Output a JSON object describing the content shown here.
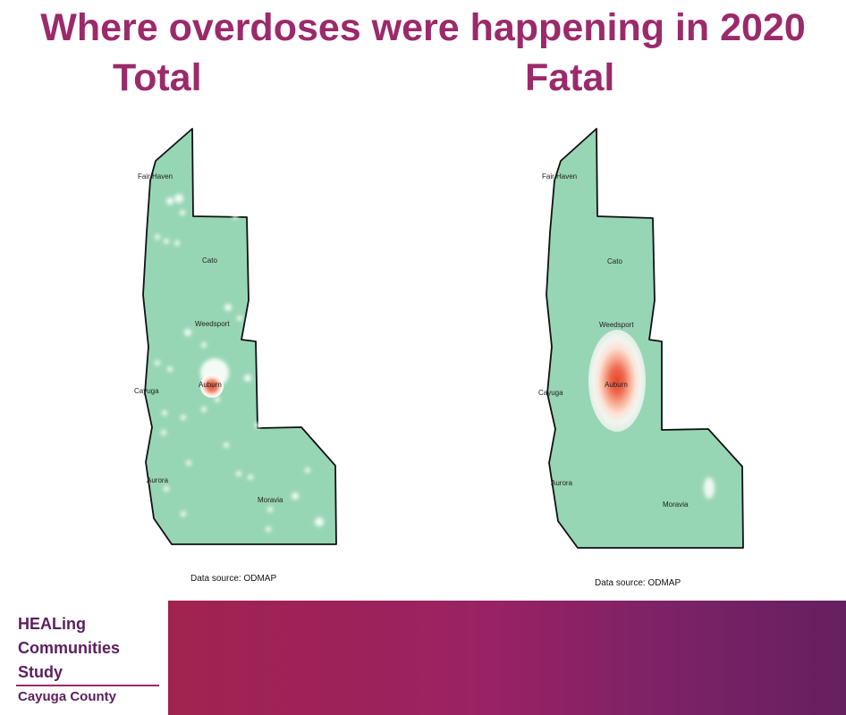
{
  "title": "Where overdoses were happening in 2020",
  "panels": [
    {
      "label": "Total",
      "source": "Data source: ODMAP"
    },
    {
      "label": "Fatal",
      "source": "Data source: ODMAP"
    }
  ],
  "towns": {
    "fair_haven": "Fair Haven",
    "cato": "Cato",
    "weedsport": "Weedsport",
    "cayuga": "Cayuga",
    "auburn": "Auburn",
    "aurora": "Aurora",
    "moravia": "Moravia"
  },
  "logo": {
    "line1": "HEALing",
    "line2": "Communities",
    "line3": "Study",
    "county": "Cayuga County"
  },
  "colors": {
    "title": "#9b2a6b",
    "map_fill": "#97d6b4",
    "hotspot": "#e8452f",
    "footer_band_start": "#a0234f",
    "footer_band_end": "#66205f"
  }
}
